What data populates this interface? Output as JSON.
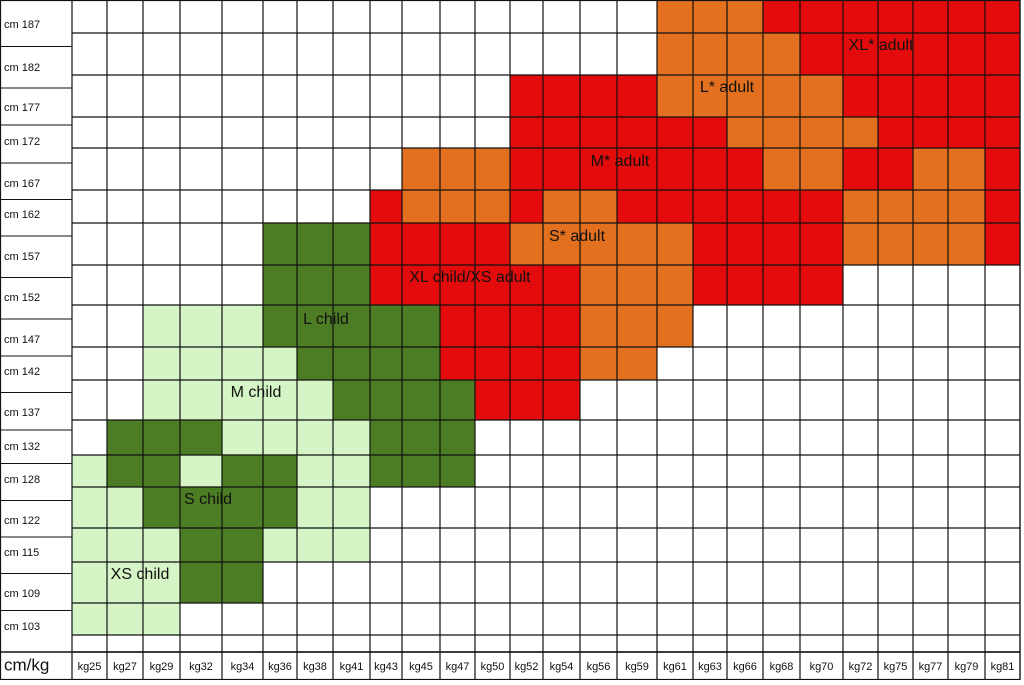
{
  "corner": "cm/kg",
  "heights": [
    "cm 187",
    "cm 182",
    "cm 177",
    "cm 172",
    "cm 167",
    "cm 162",
    "cm 157",
    "cm 152",
    "cm 147",
    "cm 142",
    "cm 137",
    "cm 132",
    "cm 128",
    "cm 122",
    "cm 115",
    "cm 109",
    "cm 103"
  ],
  "weights": [
    "kg25",
    "kg27",
    "kg29",
    "kg32",
    "kg34",
    "kg36",
    "kg38",
    "kg41",
    "kg43",
    "kg45",
    "kg47",
    "kg50",
    "kg52",
    "kg54",
    "kg56",
    "kg59",
    "kg61",
    "kg63",
    "kg66",
    "kg68",
    "kg70",
    "kg72",
    "kg75",
    "kg77",
    "kg79",
    "kg81"
  ],
  "regions": [
    "XS child",
    "S child",
    "M child",
    "L child",
    "XL child/XS adult",
    "S* adult",
    "M* adult",
    "L* adult",
    "XL* adult"
  ]
}
